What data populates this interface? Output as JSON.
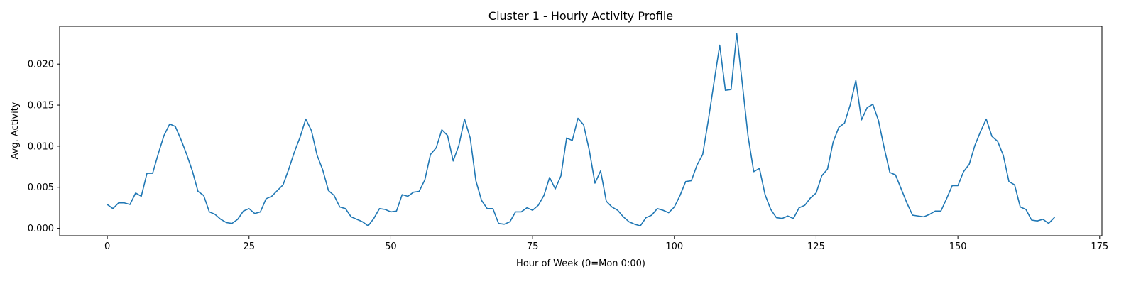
{
  "chart_data": {
    "type": "line",
    "title": "Cluster 1 - Hourly Activity Profile",
    "xlabel": "Hour of Week (0=Mon 0:00)",
    "ylabel": "Avg. Activity",
    "xlim": [
      -8.4,
      175.4
    ],
    "ylim": [
      -0.0009,
      0.0246
    ],
    "xticks": [
      0,
      25,
      50,
      75,
      100,
      125,
      150,
      175
    ],
    "yticks": [
      0.0,
      0.005,
      0.01,
      0.015,
      0.02
    ],
    "xtick_labels": [
      "0",
      "25",
      "50",
      "75",
      "100",
      "125",
      "150",
      "175"
    ],
    "ytick_labels": [
      "0.000",
      "0.005",
      "0.010",
      "0.015",
      "0.020"
    ],
    "grid": false,
    "line_color": "#1f77b4",
    "series": [
      {
        "x": [
          0,
          1,
          2,
          3,
          4,
          5,
          6,
          7,
          8,
          9,
          10,
          11,
          12,
          13,
          14,
          15,
          16,
          17,
          18,
          19,
          20,
          21,
          22,
          23,
          24,
          25,
          26,
          27,
          28,
          29,
          30,
          31,
          32,
          33,
          34,
          35,
          36,
          37,
          38,
          39,
          40,
          41,
          42,
          43,
          44,
          45,
          46,
          47,
          48,
          49,
          50,
          51,
          52,
          53,
          54,
          55,
          56,
          57,
          58,
          59,
          60,
          61,
          62,
          63,
          64,
          65,
          66,
          67,
          68,
          69,
          70,
          71,
          72,
          73,
          74,
          75,
          76,
          77,
          78,
          79,
          80,
          81,
          82,
          83,
          84,
          85,
          86,
          87,
          88,
          89,
          90,
          91,
          92,
          93,
          94,
          95,
          96,
          97,
          98,
          99,
          100,
          101,
          102,
          103,
          104,
          105,
          106,
          107,
          108,
          109,
          110,
          111,
          112,
          113,
          114,
          115,
          116,
          117,
          118,
          119,
          120,
          121,
          122,
          123,
          124,
          125,
          126,
          127,
          128,
          129,
          130,
          131,
          132,
          133,
          134,
          135,
          136,
          137,
          138,
          139,
          140,
          141,
          142,
          143,
          144,
          145,
          146,
          147,
          148,
          149,
          150,
          151,
          152,
          153,
          154,
          155,
          156,
          157,
          158,
          159,
          160,
          161,
          162,
          163,
          164,
          165,
          166,
          167
        ],
        "values": [
          0.0029,
          0.0024,
          0.0031,
          0.0031,
          0.0029,
          0.0043,
          0.0039,
          0.0067,
          0.0067,
          0.0091,
          0.0113,
          0.0127,
          0.0124,
          0.0108,
          0.009,
          0.007,
          0.0045,
          0.004,
          0.002,
          0.0017,
          0.0011,
          0.0007,
          0.0006,
          0.0011,
          0.0021,
          0.0024,
          0.0018,
          0.002,
          0.0036,
          0.0039,
          0.0046,
          0.0053,
          0.0072,
          0.0093,
          0.0111,
          0.0133,
          0.0119,
          0.0089,
          0.0071,
          0.0046,
          0.004,
          0.0026,
          0.0024,
          0.0014,
          0.0011,
          0.0008,
          0.0003,
          0.0012,
          0.0024,
          0.0023,
          0.002,
          0.0021,
          0.0041,
          0.0039,
          0.0044,
          0.0045,
          0.0059,
          0.009,
          0.0098,
          0.012,
          0.0113,
          0.0082,
          0.0101,
          0.0133,
          0.011,
          0.0058,
          0.0034,
          0.0024,
          0.0024,
          0.0006,
          0.0005,
          0.0008,
          0.002,
          0.002,
          0.0025,
          0.0022,
          0.0028,
          0.004,
          0.0062,
          0.0048,
          0.0064,
          0.011,
          0.0107,
          0.0134,
          0.0126,
          0.0095,
          0.0055,
          0.007,
          0.0033,
          0.0026,
          0.0022,
          0.0014,
          0.0008,
          0.0005,
          0.0003,
          0.0013,
          0.0016,
          0.0024,
          0.0022,
          0.0019,
          0.0026,
          0.004,
          0.0057,
          0.0058,
          0.0077,
          0.009,
          0.0132,
          0.0178,
          0.0223,
          0.0168,
          0.0169,
          0.0237,
          0.0175,
          0.0112,
          0.0069,
          0.0073,
          0.0041,
          0.0023,
          0.0013,
          0.0012,
          0.0015,
          0.0012,
          0.0025,
          0.0028,
          0.0037,
          0.0043,
          0.0064,
          0.0072,
          0.0105,
          0.0123,
          0.0128,
          0.015,
          0.018,
          0.0132,
          0.0147,
          0.0151,
          0.0131,
          0.0098,
          0.0068,
          0.0065,
          0.0048,
          0.0031,
          0.0016,
          0.0015,
          0.0014,
          0.0017,
          0.0021,
          0.0021,
          0.0036,
          0.0052,
          0.0052,
          0.0069,
          0.0078,
          0.0101,
          0.0118,
          0.0133,
          0.0112,
          0.0106,
          0.0089,
          0.0057,
          0.0053,
          0.0026,
          0.0023,
          0.001,
          0.0009,
          0.0011,
          0.0006,
          0.0013
        ]
      }
    ]
  }
}
